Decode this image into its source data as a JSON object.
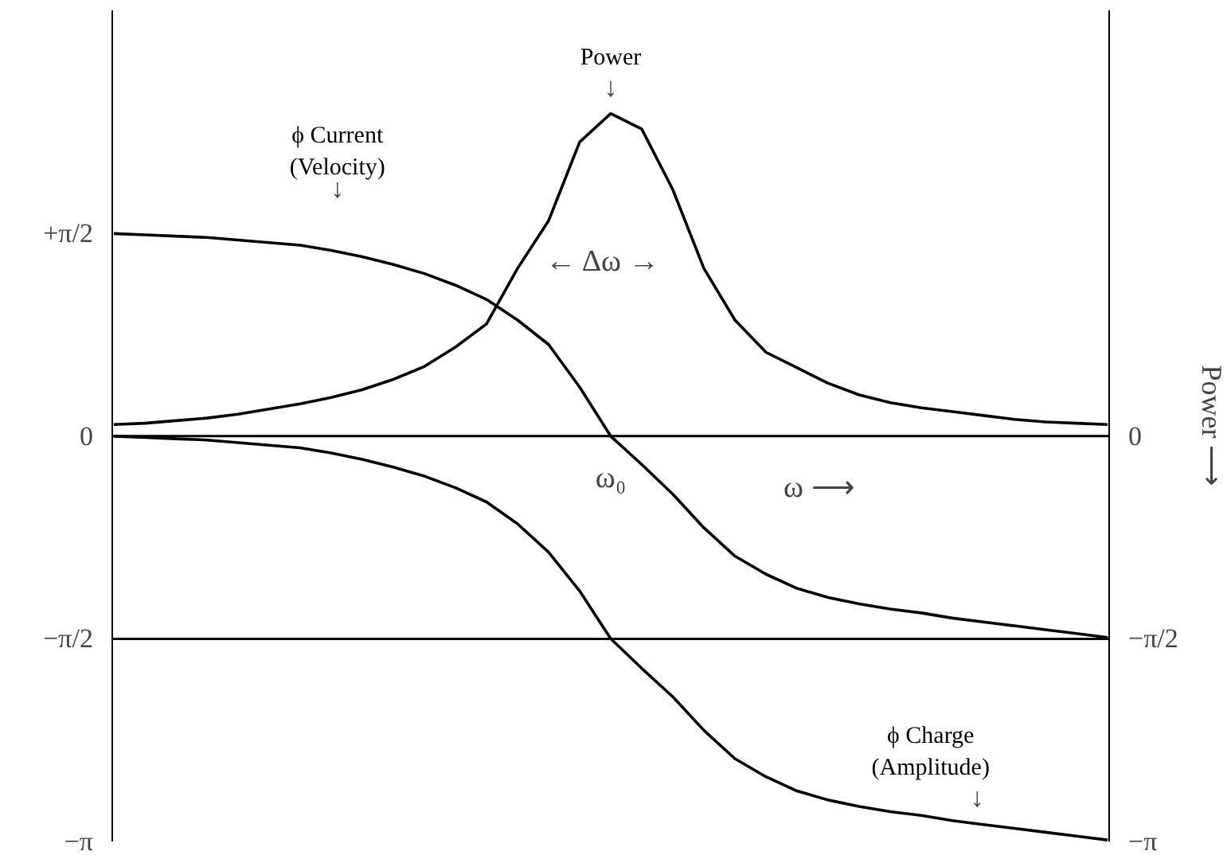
{
  "chart_data": {
    "type": "line",
    "categories": [
      null,
      null,
      null,
      null,
      null,
      null,
      null,
      null,
      null,
      null,
      null,
      null,
      null,
      null,
      null,
      null,
      null,
      null,
      null,
      null,
      null,
      null,
      null,
      null,
      null,
      null,
      null,
      null,
      null,
      null,
      null,
      null,
      null
    ],
    "series": [
      {
        "name": "Power",
        "color": "#000000",
        "values": [
          0.09,
          0.1,
          0.12,
          0.14,
          0.17,
          0.21,
          0.25,
          0.3,
          0.36,
          0.44,
          0.54,
          0.69,
          0.87,
          1.3,
          1.67,
          2.28,
          2.5,
          2.38,
          1.91,
          1.3,
          0.9,
          0.65,
          0.53,
          0.41,
          0.32,
          0.26,
          0.22,
          0.19,
          0.16,
          0.13,
          0.11,
          0.1,
          0.09
        ]
      },
      {
        "name": "ϕ Current (Velocity)",
        "color": "#000000",
        "values": [
          1.57,
          1.56,
          1.55,
          1.54,
          1.52,
          1.5,
          1.48,
          1.44,
          1.39,
          1.33,
          1.26,
          1.17,
          1.06,
          0.9,
          0.71,
          0.38,
          0,
          -0.22,
          -0.45,
          -0.71,
          -0.93,
          -1.07,
          -1.18,
          -1.25,
          -1.3,
          -1.34,
          -1.37,
          -1.41,
          -1.44,
          -1.47,
          -1.5,
          -1.53,
          -1.56
        ]
      },
      {
        "name": "ϕ Charge (Amplitude)",
        "color": "#000000",
        "values": [
          0,
          -0.01,
          -0.02,
          -0.03,
          -0.05,
          -0.07,
          -0.09,
          -0.13,
          -0.18,
          -0.24,
          -0.31,
          -0.4,
          -0.51,
          -0.68,
          -0.9,
          -1.2,
          -1.57,
          -1.8,
          -2.02,
          -2.28,
          -2.5,
          -2.64,
          -2.75,
          -2.82,
          -2.87,
          -2.91,
          -2.94,
          -2.98,
          -3.01,
          -3.04,
          -3.07,
          -3.1,
          -3.13
        ]
      }
    ],
    "ylim": [
      -3.1416,
      3.3
    ],
    "y2lim": [
      -3.1416,
      3.3
    ],
    "yticks": [
      {
        "value": 1.5708,
        "label": "+π/2"
      },
      {
        "value": 0,
        "label": "0"
      },
      {
        "value": -1.5708,
        "label": "−π/2"
      },
      {
        "value": -3.1416,
        "label": "−π"
      }
    ],
    "y2ticks": [
      {
        "value": 0,
        "label": "0"
      },
      {
        "value": -1.5708,
        "label": "−π/2"
      },
      {
        "value": -3.1416,
        "label": "−π"
      }
    ],
    "y2label": "Power ⟶",
    "tick_labels": "y",
    "grid": false,
    "line_style": "solid",
    "marker": "none",
    "ref_lines": [
      {
        "axis": "y",
        "value": 0,
        "color": "#000000"
      },
      {
        "axis": "y",
        "value": -1.5708,
        "color": "#000000"
      }
    ],
    "annotations": [
      "←  Δω  →",
      "ω₀",
      "ω ⟶",
      "↓",
      "↓",
      "↓"
    ]
  }
}
